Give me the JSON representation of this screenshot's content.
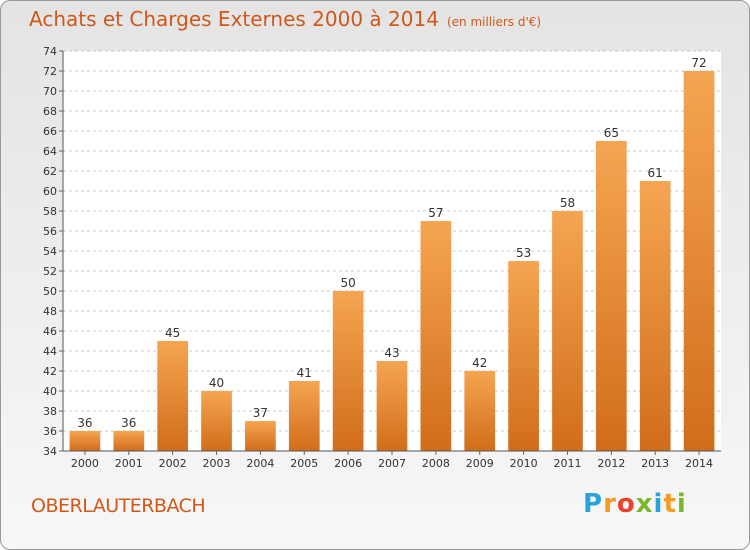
{
  "title": "Achats et Charges Externes 2000 à 2014",
  "unit": "(en milliers d'€)",
  "commune": "OBERLAUTERBACH",
  "brand": {
    "letters": [
      "P",
      "r",
      "o",
      "x",
      "i",
      "t",
      "i"
    ],
    "colors": [
      "#29a3d8",
      "#f59a23",
      "#e8412c",
      "#7bb72b",
      "#29a3d8",
      "#f59a23",
      "#7bb72b"
    ]
  },
  "colors": {
    "accent": "#d0581a",
    "bar_top": "#f5a552",
    "bar_bottom": "#d16d1a",
    "grid": "#c8c8c8"
  },
  "chart_data": {
    "type": "bar",
    "categories": [
      "2000",
      "2001",
      "2002",
      "2003",
      "2004",
      "2005",
      "2006",
      "2007",
      "2008",
      "2009",
      "2010",
      "2011",
      "2012",
      "2013",
      "2014"
    ],
    "values": [
      36,
      36,
      45,
      40,
      37,
      41,
      50,
      43,
      57,
      42,
      53,
      58,
      65,
      61,
      72
    ],
    "ylim": [
      34,
      74
    ],
    "ytick_step": 2,
    "grid": true,
    "data_labels": true,
    "xlabel": "",
    "ylabel": ""
  }
}
